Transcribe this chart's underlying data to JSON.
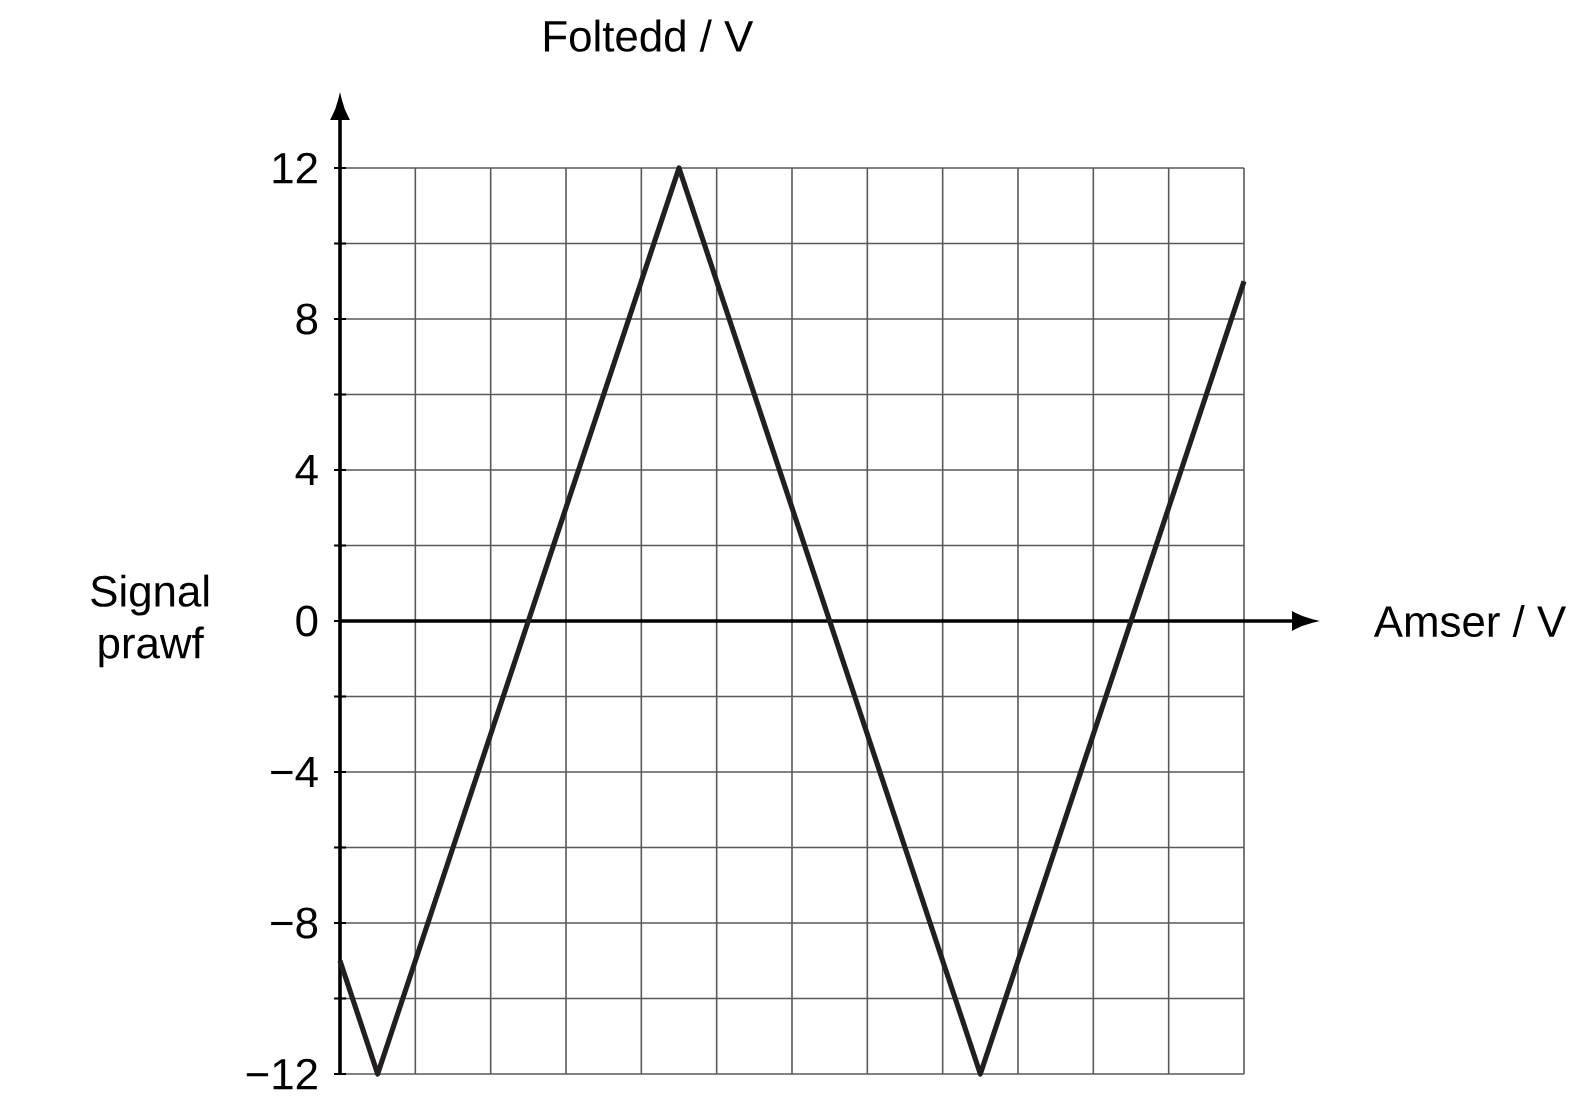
{
  "chart_data": {
    "type": "line",
    "ylabel": "Foltedd / V",
    "xlabel": "Amser / V",
    "annotations": [
      "Signal prawf"
    ],
    "categories": [
      null,
      null,
      null,
      null,
      null,
      null,
      null,
      null,
      null,
      null,
      null,
      null,
      null,
      null,
      null,
      null,
      null,
      null,
      null,
      null,
      null,
      null,
      null,
      null,
      null
    ],
    "values": [
      -9,
      -12,
      -9,
      -6,
      -3,
      0,
      3,
      6,
      9,
      12,
      9,
      6,
      3,
      0,
      -3,
      -6,
      -9,
      -12,
      -9,
      -6,
      -3,
      0,
      3,
      6,
      9
    ],
    "color": "#231f20",
    "line_style": "solid",
    "ylim": [
      -12,
      12
    ],
    "yticks": [
      {
        "value": -12,
        "label": "−12"
      },
      {
        "value": -10,
        "label": null
      },
      {
        "value": -8,
        "label": "−8"
      },
      {
        "value": -6,
        "label": null
      },
      {
        "value": -4,
        "label": "−4"
      },
      {
        "value": -2,
        "label": null
      },
      {
        "value": 0,
        "label": "0"
      },
      {
        "value": 2,
        "label": null
      },
      {
        "value": 4,
        "label": "4"
      },
      {
        "value": 6,
        "label": null
      },
      {
        "value": 8,
        "label": "8"
      },
      {
        "value": 10,
        "label": null
      },
      {
        "value": 12,
        "label": "12"
      }
    ],
    "grid": true
  }
}
